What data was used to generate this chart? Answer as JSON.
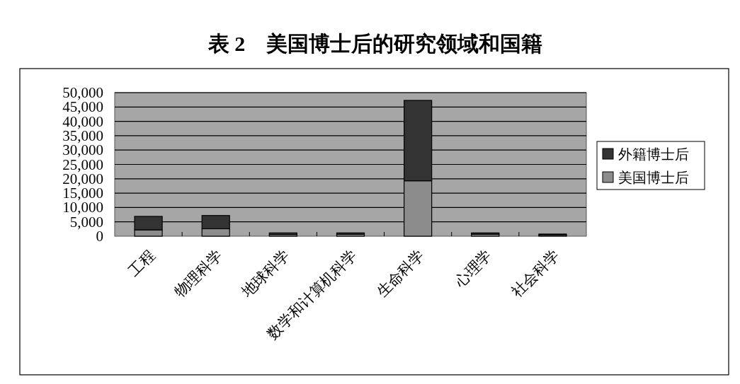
{
  "chart_data": {
    "type": "bar",
    "title": "表 2　美国博士后的研究领域和国籍",
    "categories": [
      "工程",
      "物理科学",
      "地球科学",
      "数学和计算机科学",
      "生命科学",
      "心理学",
      "社会科学"
    ],
    "stacked": true,
    "series": [
      {
        "name": "美国博士后",
        "color": "#8c8c8c",
        "values": [
          2200,
          2600,
          600,
          650,
          19300,
          700,
          400
        ]
      },
      {
        "name": "外籍博士后",
        "color": "#333333",
        "values": [
          4700,
          4600,
          550,
          500,
          28000,
          450,
          350
        ]
      }
    ],
    "ylim": [
      0,
      50000
    ],
    "yticks": [
      0,
      {
        "value": 5000,
        "label": "5,000"
      },
      {
        "value": 10000,
        "label": "10,000"
      },
      {
        "value": 15000,
        "label": "15,000"
      },
      {
        "value": 20000,
        "label": "20,000"
      },
      {
        "value": 25000,
        "label": "25,000"
      },
      {
        "value": 30000,
        "label": "30,000"
      },
      {
        "value": 35000,
        "label": "35,000"
      },
      {
        "value": 40000,
        "label": "40,000"
      },
      {
        "value": 45000,
        "label": "45,000"
      },
      {
        "value": 50000,
        "label": "50,000"
      }
    ],
    "grid": "y",
    "legend": "right"
  }
}
